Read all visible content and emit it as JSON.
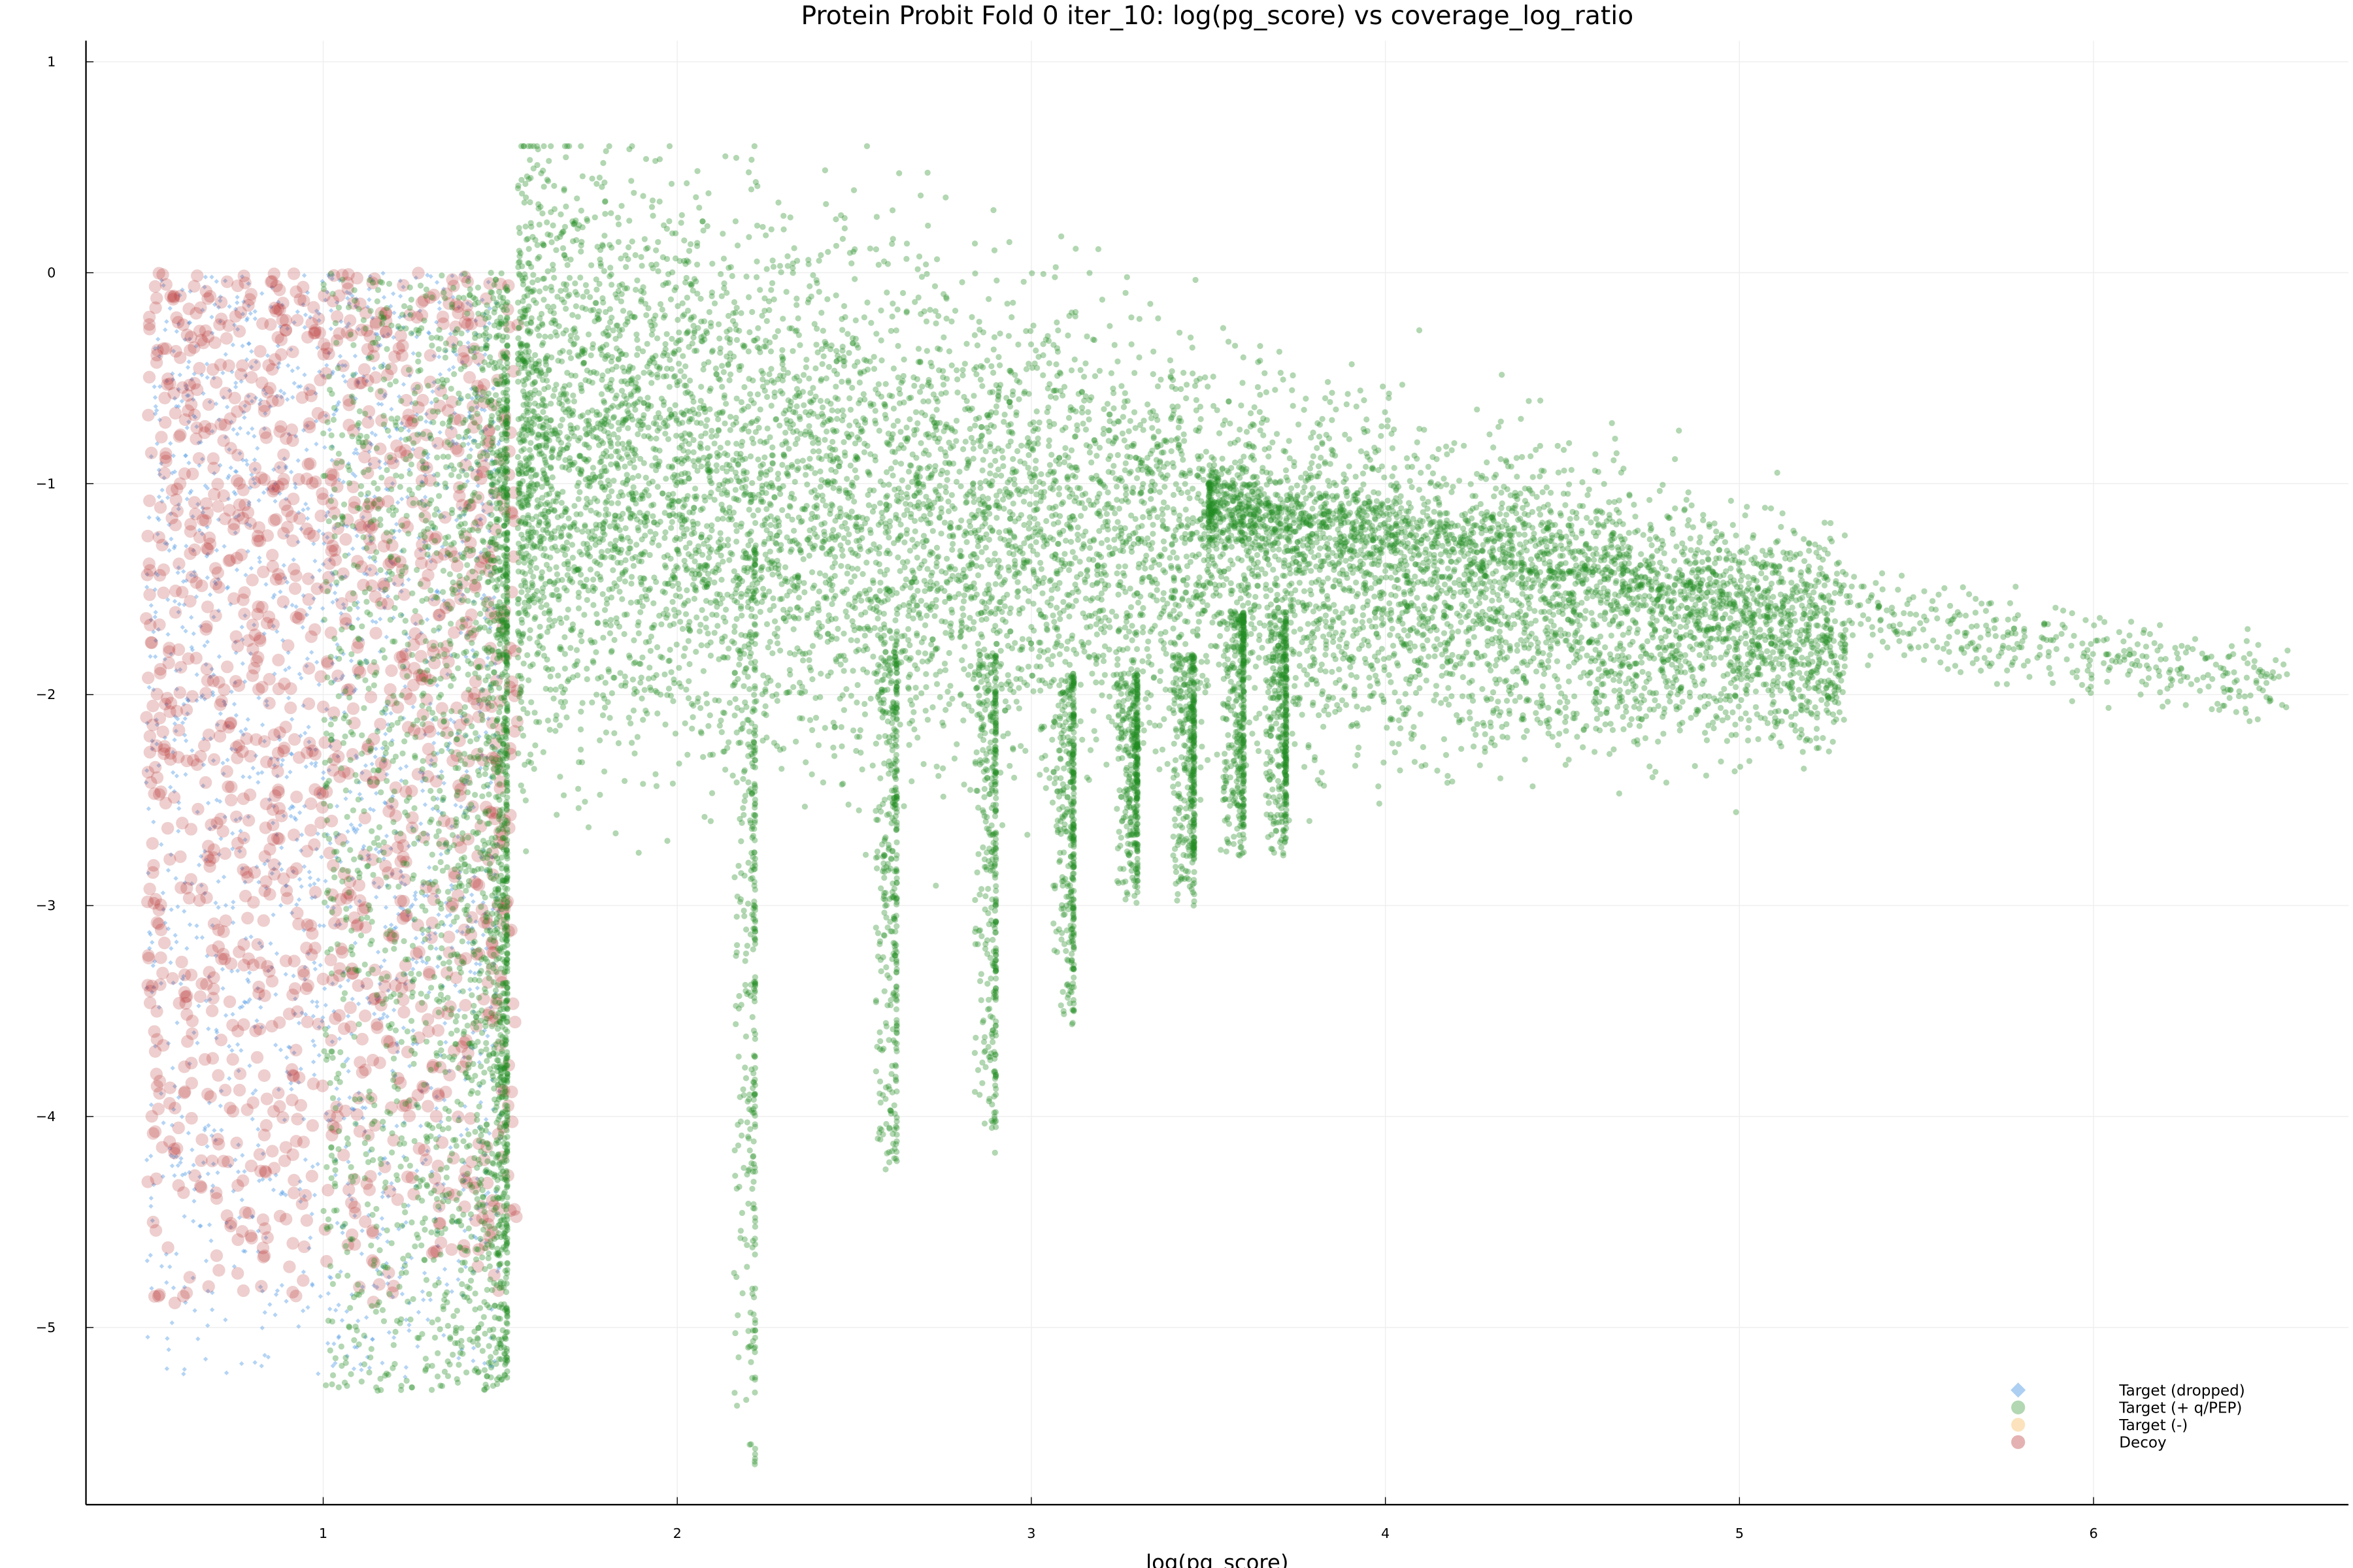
{
  "chart_data": {
    "type": "scatter",
    "title": "Protein Probit Fold 0 iter_10: log(pg_score) vs coverage_log_ratio",
    "xlabel": "log(pg_score)",
    "ylabel": "",
    "xlim": [
      0.33,
      6.72
    ],
    "ylim": [
      -5.84,
      1.1
    ],
    "xticks": [
      1,
      2,
      3,
      4,
      5,
      6
    ],
    "yticks": [
      1,
      0,
      -1,
      -2,
      -3,
      -4,
      -5
    ],
    "grid": true,
    "legend_position": "bottom-right",
    "series": [
      {
        "name": "Target (dropped)",
        "color": "#5aa0e6",
        "marker": "diamond",
        "clusters": [
          {
            "x": [
              0.5,
              1.5
            ],
            "y": [
              -5.25,
              0.0
            ],
            "count": 1800
          }
        ]
      },
      {
        "name": "Target (+ q/PEP)",
        "color": "#228b22",
        "marker": "circle",
        "clusters": [
          {
            "x": [
              1.0,
              1.52
            ],
            "y": [
              -5.3,
              0.0
            ],
            "count": 2200
          },
          {
            "x": [
              1.55,
              5.3
            ],
            "y": [
              -4.5,
              0.6
            ],
            "count": 9000
          },
          {
            "x": [
              3.5,
              6.55
            ],
            "y": [
              -2.6,
              -0.6
            ],
            "count": 1500
          }
        ],
        "stripes": [
          {
            "x": 1.52,
            "y": [
              -5.3,
              -0.5
            ]
          },
          {
            "x": 2.22,
            "y": [
              -5.7,
              -1.3
            ]
          },
          {
            "x": 2.62,
            "y": [
              -4.3,
              -1.7
            ]
          },
          {
            "x": 2.9,
            "y": [
              -4.2,
              -1.8
            ]
          },
          {
            "x": 3.12,
            "y": [
              -3.6,
              -1.9
            ]
          },
          {
            "x": 3.3,
            "y": [
              -3.0,
              -1.9
            ]
          },
          {
            "x": 3.46,
            "y": [
              -3.0,
              -1.8
            ]
          },
          {
            "x": 3.6,
            "y": [
              -2.8,
              -1.6
            ]
          },
          {
            "x": 3.72,
            "y": [
              -2.8,
              -1.6
            ]
          }
        ]
      },
      {
        "name": "Target (-)",
        "color": "#f5b041",
        "marker": "circle",
        "clusters": []
      },
      {
        "name": "Decoy",
        "color": "#b22222",
        "marker": "circle",
        "clusters": [
          {
            "x": [
              0.5,
              1.55
            ],
            "y": [
              -4.9,
              0.0
            ],
            "count": 1500
          }
        ]
      }
    ]
  }
}
